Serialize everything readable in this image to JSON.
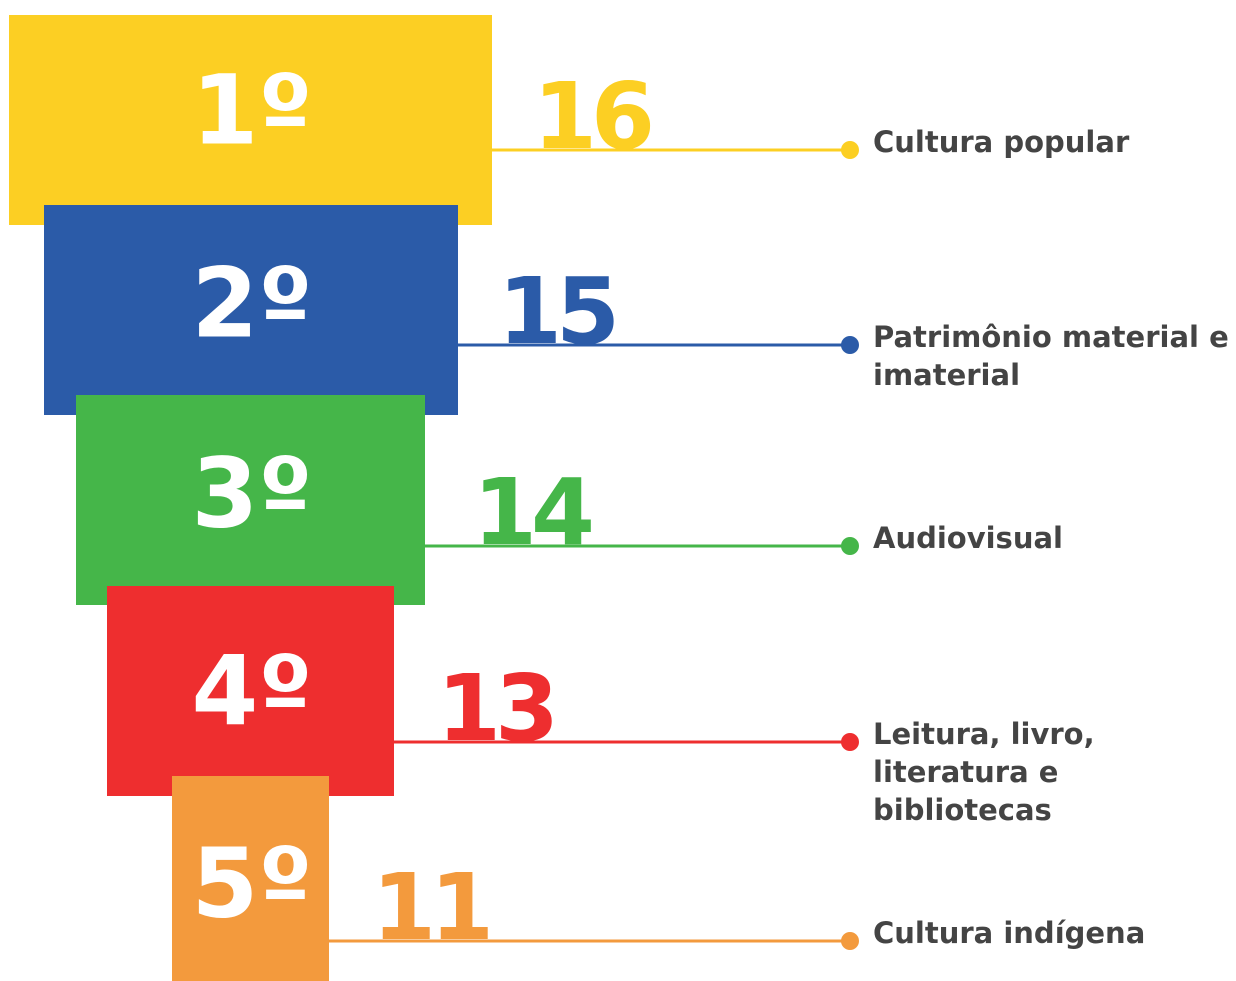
{
  "items": [
    {
      "rank": "1º",
      "value": "16",
      "label": "Cultura popular",
      "color": "#fccf23"
    },
    {
      "rank": "2º",
      "value": "15",
      "label": "Patrimônio material e imaterial",
      "color": "#2b5ba8"
    },
    {
      "rank": "3º",
      "value": "14",
      "label": "Audiovisual",
      "color": "#45b649"
    },
    {
      "rank": "4º",
      "value": "13",
      "label": "Leitura, livro, literatura e bibliotecas",
      "color": "#ee2e2f"
    },
    {
      "rank": "5º",
      "value": "11",
      "label": "Cultura indígena",
      "color": "#f39a3d"
    }
  ]
}
